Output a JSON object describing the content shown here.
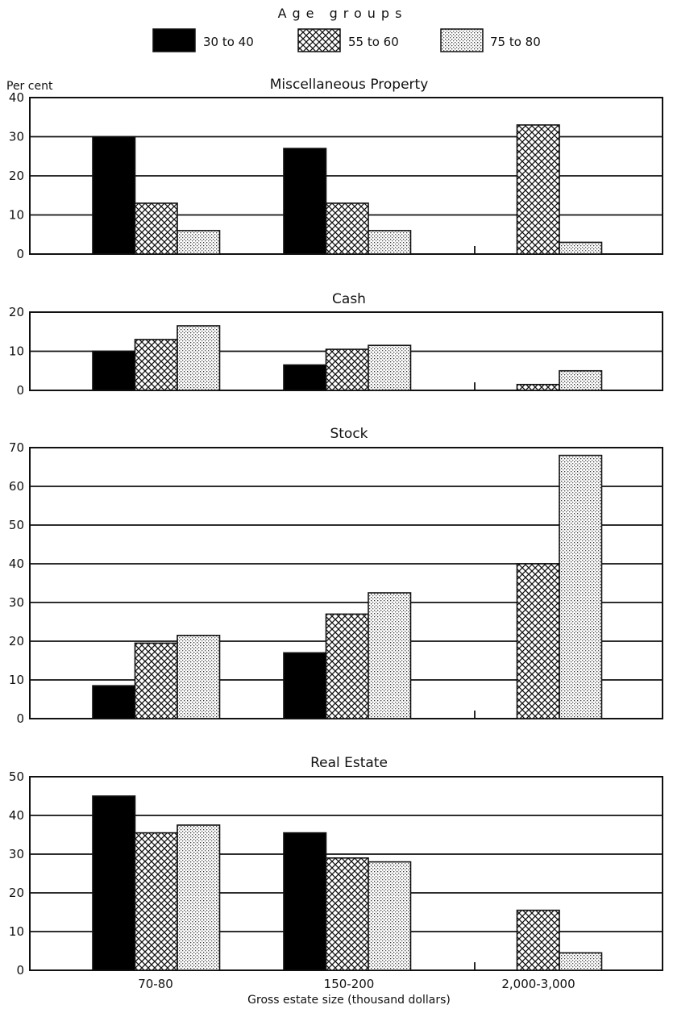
{
  "legend": {
    "title": "Age groups",
    "items": [
      "30 to 40",
      "55 to 60",
      "75 to 80"
    ]
  },
  "y_unit_label": "Per cent",
  "x_axis_label": "Gross estate size (thousand dollars)",
  "colors": {
    "series_1": "#000000",
    "ink": "#111111",
    "background": "#ffffff"
  },
  "chart_data": [
    {
      "type": "bar",
      "title": "Miscellaneous Property",
      "categories": [
        "70-80",
        "150-200",
        "2,000-3,000"
      ],
      "series": [
        {
          "name": "30 to 40",
          "values": [
            30,
            27,
            null
          ]
        },
        {
          "name": "55 to 60",
          "values": [
            13,
            13,
            33
          ]
        },
        {
          "name": "75 to 80",
          "values": [
            6,
            6,
            3
          ]
        }
      ],
      "ylim": [
        0,
        40
      ],
      "yticks": [
        0,
        10,
        20,
        30,
        40
      ],
      "ylabel": "Per cent",
      "grid": true
    },
    {
      "type": "bar",
      "title": "Cash",
      "categories": [
        "70-80",
        "150-200",
        "2,000-3,000"
      ],
      "series": [
        {
          "name": "30 to 40",
          "values": [
            10,
            6.5,
            null
          ]
        },
        {
          "name": "55 to 60",
          "values": [
            13,
            10.5,
            1.5
          ]
        },
        {
          "name": "75 to 80",
          "values": [
            16.5,
            11.5,
            5
          ]
        }
      ],
      "ylim": [
        0,
        20
      ],
      "yticks": [
        0,
        10,
        20
      ],
      "grid": true
    },
    {
      "type": "bar",
      "title": "Stock",
      "categories": [
        "70-80",
        "150-200",
        "2,000-3,000"
      ],
      "series": [
        {
          "name": "30 to 40",
          "values": [
            8.5,
            17,
            null
          ]
        },
        {
          "name": "55 to 60",
          "values": [
            19.5,
            27,
            40
          ]
        },
        {
          "name": "75 to 80",
          "values": [
            21.5,
            32.5,
            68
          ]
        }
      ],
      "ylim": [
        0,
        70
      ],
      "yticks": [
        0,
        10,
        20,
        30,
        40,
        50,
        60,
        70
      ],
      "grid": true
    },
    {
      "type": "bar",
      "title": "Real Estate",
      "categories": [
        "70-80",
        "150-200",
        "2,000-3,000"
      ],
      "series": [
        {
          "name": "30 to 40",
          "values": [
            45,
            35.5,
            null
          ]
        },
        {
          "name": "55 to 60",
          "values": [
            35.5,
            29,
            15.5
          ]
        },
        {
          "name": "75 to 80",
          "values": [
            37.5,
            28,
            4.5
          ]
        }
      ],
      "ylim": [
        0,
        50
      ],
      "yticks": [
        0,
        10,
        20,
        30,
        40,
        50
      ],
      "xlabel": "Gross estate size (thousand dollars)",
      "grid": true
    }
  ]
}
